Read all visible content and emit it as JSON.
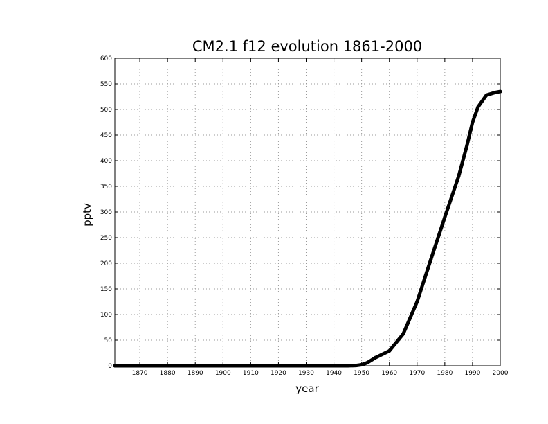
{
  "chart_data": {
    "type": "line",
    "title": "CM2.1 f12 evolution 1861-2000",
    "xlabel": "year",
    "ylabel": "pptv",
    "xlim": [
      1861,
      2000
    ],
    "ylim": [
      0,
      600
    ],
    "xticks": [
      1870,
      1880,
      1890,
      1900,
      1910,
      1920,
      1930,
      1940,
      1950,
      1960,
      1970,
      1980,
      1990,
      2000
    ],
    "yticks": [
      0,
      50,
      100,
      150,
      200,
      250,
      300,
      350,
      400,
      450,
      500,
      550,
      600
    ],
    "grid": true,
    "legend": "none",
    "series": [
      {
        "color": "#000000",
        "x": [
          1861,
          1870,
          1880,
          1890,
          1900,
          1910,
          1920,
          1930,
          1940,
          1945,
          1948,
          1950,
          1952,
          1955,
          1960,
          1965,
          1970,
          1975,
          1980,
          1985,
          1988,
          1990,
          1992,
          1995,
          1998,
          2000
        ],
        "y": [
          0,
          0,
          0,
          0,
          0,
          0,
          0,
          0,
          0,
          0,
          0.5,
          2,
          6,
          16,
          29,
          62,
          125,
          208,
          290,
          370,
          430,
          475,
          505,
          528,
          533,
          535
        ]
      }
    ]
  }
}
